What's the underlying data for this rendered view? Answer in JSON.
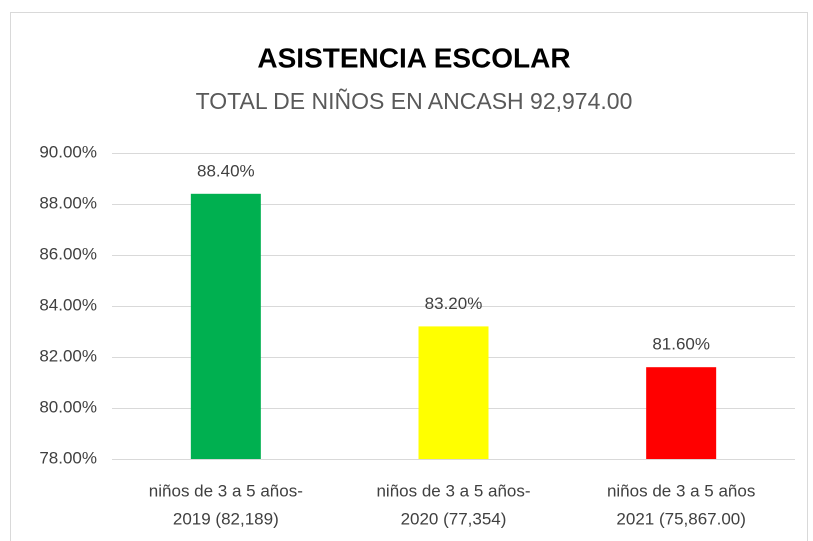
{
  "chart_data": {
    "type": "bar",
    "title": "ASISTENCIA ESCOLAR",
    "subtitle": "TOTAL DE NIÑOS EN ANCASH 92,974.00",
    "categories": [
      [
        "niños de 3 a 5 años-",
        "2019 (82,189)"
      ],
      [
        "niños de 3 a 5 años-",
        "2020 (77,354)"
      ],
      [
        "niños de 3 a 5 años",
        "2021 (75,867.00)"
      ]
    ],
    "values": [
      88.4,
      83.2,
      81.6
    ],
    "value_labels": [
      "88.40%",
      "83.20%",
      "81.60%"
    ],
    "colors": [
      "#00b050",
      "#ffff00",
      "#ff0000"
    ],
    "ylim": [
      78,
      90
    ],
    "yticks": [
      {
        "value": 78,
        "label": "78.00%"
      },
      {
        "value": 80,
        "label": "80.00%"
      },
      {
        "value": 82,
        "label": "82.00%"
      },
      {
        "value": 84,
        "label": "84.00%"
      },
      {
        "value": 86,
        "label": "86.00%"
      },
      {
        "value": 88,
        "label": "88.00%"
      },
      {
        "value": 90,
        "label": "90.00%"
      }
    ],
    "grid": true
  }
}
